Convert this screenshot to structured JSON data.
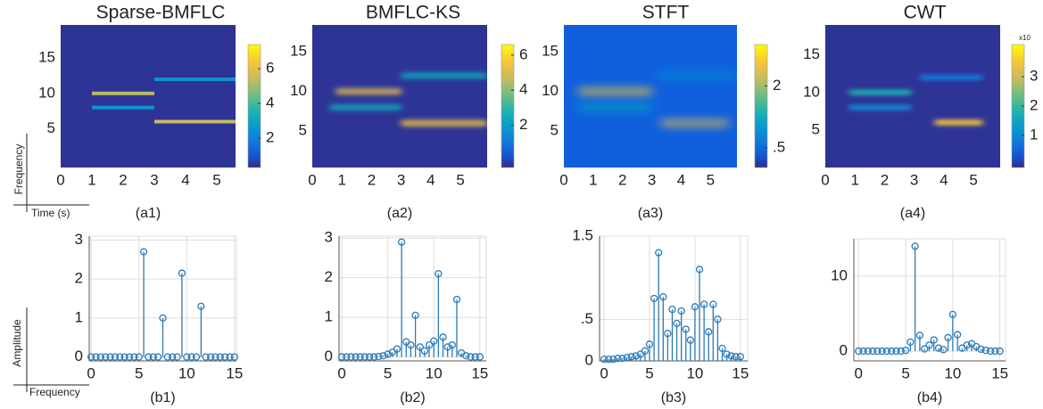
{
  "key": {
    "top_y": "Frequency",
    "top_x": "Time (s)",
    "bottom_y": "Amplitude",
    "bottom_x": "Frequency"
  },
  "chart_data": [
    {
      "type": "heatmap",
      "title": "Sparse-BMFLC",
      "label": "(a1)",
      "xlim": [
        0,
        5.6
      ],
      "ylim": [
        -0.5,
        19.7
      ],
      "xticks": [
        0,
        1,
        2,
        3,
        4,
        5
      ],
      "yticks": [
        5,
        10,
        15
      ],
      "clim": [
        0.3,
        7.4
      ],
      "cticks": [
        2,
        4,
        6
      ],
      "tracks": [
        {
          "y": 10,
          "x": [
            1,
            3
          ],
          "v": 5.3
        },
        {
          "y": 8,
          "x": [
            1,
            3
          ],
          "v": 2.5
        },
        {
          "y": 12,
          "x": [
            3,
            5.6
          ],
          "v": 2.5
        },
        {
          "y": 6,
          "x": [
            3,
            5.6
          ],
          "v": 5.5
        }
      ]
    },
    {
      "type": "heatmap",
      "title": "BMFLC-KS",
      "label": "(a2)",
      "xlim": [
        0,
        5.9
      ],
      "ylim": [
        0.4,
        18.4
      ],
      "xticks": [
        0,
        1,
        2,
        3,
        4,
        5
      ],
      "yticks": [
        5,
        10,
        15
      ],
      "clim": [
        -0.4,
        6.6
      ],
      "cticks": [
        2,
        4,
        6
      ],
      "tracks": [
        {
          "y": 10,
          "x": [
            0.8,
            3
          ],
          "v": 5
        },
        {
          "y": 8,
          "x": [
            0.6,
            3
          ],
          "v": 2.5
        },
        {
          "y": 12,
          "x": [
            3,
            5.9
          ],
          "v": 2.5
        },
        {
          "y": 6,
          "x": [
            3,
            5.9
          ],
          "v": 5.5
        }
      ]
    },
    {
      "type": "heatmap",
      "title": "STFT",
      "label": "(a3)",
      "xlim": [
        0,
        5.9
      ],
      "ylim": [
        0.4,
        18.4
      ],
      "xticks": [
        0,
        1,
        2,
        3,
        4,
        5
      ],
      "yticks": [
        5,
        10,
        15
      ],
      "clim": [
        0.02,
        3.0
      ],
      "cticks": [
        {
          "value": 0.5,
          "label": ".5"
        },
        2
      ],
      "tracks": [
        {
          "y": 10,
          "x": [
            0.5,
            3
          ],
          "v": 2.6
        },
        {
          "y": 8,
          "x": [
            0.5,
            3
          ],
          "v": 1.2
        },
        {
          "y": 12,
          "x": [
            3.2,
            5.9
          ],
          "v": 0.9
        },
        {
          "y": 6,
          "x": [
            3.3,
            5.6
          ],
          "v": 2.4
        }
      ]
    },
    {
      "type": "heatmap",
      "title": "CWT",
      "label": "(a4)",
      "xlim": [
        0,
        5.9
      ],
      "ylim": [
        0,
        19
      ],
      "xticks": [
        0,
        1,
        2,
        3,
        4,
        5
      ],
      "yticks": [
        5,
        10,
        15
      ],
      "clim": [
        -0.1,
        4.1
      ],
      "cticks": [
        1,
        2,
        3
      ],
      "clabel": "x10",
      "tracks": [
        {
          "y": 10,
          "x": [
            0.8,
            2.9
          ],
          "v": 1.8
        },
        {
          "y": 8,
          "x": [
            0.8,
            2.9
          ],
          "v": 1
        },
        {
          "y": 12,
          "x": [
            3.2,
            5.3
          ],
          "v": 0.8
        },
        {
          "y": 6,
          "x": [
            3.7,
            5.3
          ],
          "v": 3.5
        }
      ]
    },
    {
      "type": "stem",
      "label": "(b1)",
      "color": "#2a7ab9",
      "grid": true,
      "xlim": [
        -0.2,
        15.2
      ],
      "ylim": [
        -0.1,
        3.1
      ],
      "xticks": [
        0,
        5,
        10,
        15
      ],
      "yticks": [
        0,
        1,
        2,
        3
      ],
      "x": [
        0,
        0.5,
        1,
        1.5,
        2,
        2.5,
        3,
        3.5,
        4,
        4.5,
        5,
        5.5,
        6,
        6.5,
        7,
        7.5,
        8,
        8.5,
        9,
        9.5,
        10,
        10.5,
        11,
        11.5,
        12,
        12.5,
        13,
        13.5,
        14,
        14.5,
        15
      ],
      "values": [
        0,
        0,
        0,
        0,
        0,
        0,
        0,
        0,
        0,
        0,
        0,
        2.7,
        0,
        0,
        0,
        1.0,
        0,
        0,
        0,
        2.15,
        0,
        0,
        0,
        1.3,
        0,
        0,
        0,
        0,
        0,
        0,
        0
      ]
    },
    {
      "type": "stem",
      "label": "(b2)",
      "color": "#2a7ab9",
      "grid": true,
      "xlim": [
        -0.3,
        15.7
      ],
      "ylim": [
        -0.1,
        3.05
      ],
      "xticks": [
        0,
        5,
        10,
        15
      ],
      "yticks": [
        0,
        1,
        2,
        3
      ],
      "x": [
        0,
        0.5,
        1,
        1.5,
        2,
        2.5,
        3,
        3.5,
        4,
        4.5,
        5,
        5.5,
        6,
        6.5,
        7,
        7.5,
        8,
        8.5,
        9,
        9.5,
        10,
        10.5,
        11,
        11.5,
        12,
        12.5,
        13,
        13.5,
        14,
        14.5,
        15
      ],
      "values": [
        0,
        0,
        0,
        0,
        0,
        0,
        0,
        0,
        0.01,
        0.03,
        0.07,
        0.12,
        0.2,
        2.9,
        0.38,
        0.3,
        1.05,
        0.25,
        0.15,
        0.3,
        0.4,
        2.1,
        0.5,
        0.25,
        0.3,
        1.45,
        0.1,
        0.03,
        0,
        0,
        0
      ]
    },
    {
      "type": "stem",
      "label": "(b3)",
      "color": "#2a7ab9",
      "grid": true,
      "xlim": [
        -0.5,
        15.8
      ],
      "ylim": [
        0,
        1.5
      ],
      "xticks": [
        0,
        5,
        10,
        15
      ],
      "yticks": [
        0,
        {
          "value": 0.5,
          "label": ".5"
        },
        1.5
      ],
      "x": [
        0,
        0.5,
        1,
        1.5,
        2,
        2.5,
        3,
        3.5,
        4,
        4.5,
        5,
        5.5,
        6,
        6.5,
        7,
        7.5,
        8,
        8.5,
        9,
        9.5,
        10,
        10.5,
        11,
        11.5,
        12,
        12.5,
        13,
        13.5,
        14,
        14.5,
        15
      ],
      "values": [
        0.02,
        0.02,
        0.02,
        0.03,
        0.03,
        0.04,
        0.05,
        0.06,
        0.08,
        0.12,
        0.2,
        0.75,
        1.3,
        0.77,
        0.33,
        0.62,
        0.45,
        0.6,
        0.38,
        0.25,
        0.65,
        1.1,
        0.68,
        0.35,
        0.68,
        0.5,
        0.15,
        0.08,
        0.06,
        0.05,
        0.05
      ]
    },
    {
      "type": "stem",
      "label": "(b4)",
      "color": "#2a7ab9",
      "grid": true,
      "xlim": [
        -0.5,
        15.6
      ],
      "ylim": [
        -1.3,
        15
      ],
      "xticks": [
        0,
        5,
        10,
        15
      ],
      "yticks": [
        0,
        10
      ],
      "x": [
        0,
        0.5,
        1,
        1.5,
        2,
        2.5,
        3,
        3.5,
        4,
        4.5,
        5,
        5.5,
        6,
        6.5,
        7,
        7.5,
        8,
        8.5,
        9,
        9.5,
        10,
        10.5,
        11,
        11.5,
        12,
        12.5,
        13,
        13.5,
        14,
        14.5,
        15
      ],
      "values": [
        0,
        0,
        0,
        0,
        0,
        0,
        0,
        0,
        0,
        0,
        0.1,
        1.2,
        14,
        2.1,
        0.3,
        0.8,
        1.5,
        0.4,
        0.2,
        1.8,
        4.9,
        2.2,
        0.4,
        0.8,
        1,
        0.6,
        0.25,
        0.1,
        0,
        0,
        0
      ]
    }
  ]
}
